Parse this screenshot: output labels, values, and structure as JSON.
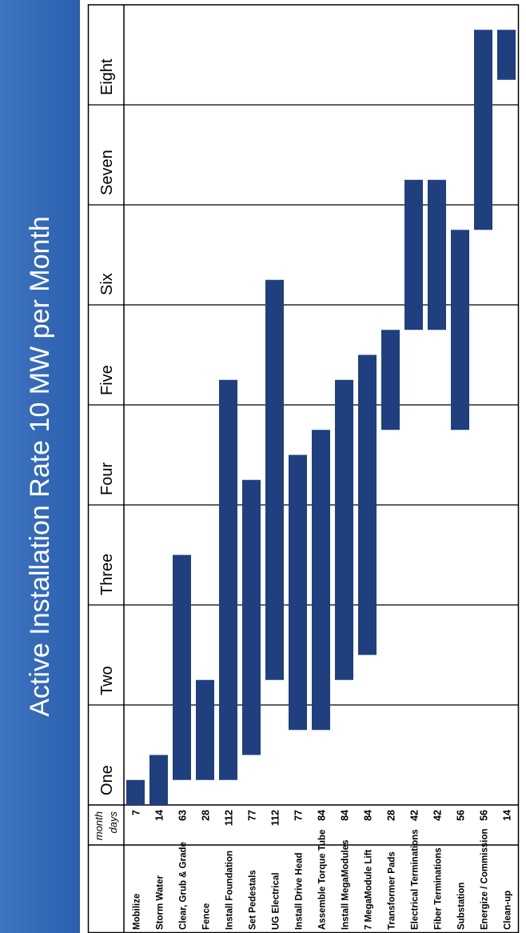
{
  "banner": {
    "title": "Active Installation Rate 10 MW per Month"
  },
  "chart_data": {
    "type": "gantt",
    "header": {
      "month_label": "month",
      "days_label": "days"
    },
    "months": [
      "One",
      "Two",
      "Three",
      "Four",
      "Five",
      "Six",
      "Seven",
      "Eight"
    ],
    "tasks": [
      {
        "name": "Mobilize",
        "days": "7",
        "start": 0,
        "end": 7
      },
      {
        "name": "Storm Water",
        "days": "14",
        "start": 0,
        "end": 14
      },
      {
        "name": "Clear, Grub & Grade",
        "days": "63",
        "start": 7,
        "end": 70
      },
      {
        "name": "Fence",
        "days": "28",
        "start": 7,
        "end": 35
      },
      {
        "name": "Install Foundation",
        "days": "112",
        "start": 7,
        "end": 119
      },
      {
        "name": "Set Pedestals",
        "days": "77",
        "start": 14,
        "end": 91
      },
      {
        "name": "UG Electrical",
        "days": "112",
        "start": 35,
        "end": 147
      },
      {
        "name": "Install Drive Head",
        "days": "77",
        "start": 21,
        "end": 98
      },
      {
        "name": "Assemble Torque Tube",
        "days": "84",
        "start": 21,
        "end": 105
      },
      {
        "name": "Install MegaModules",
        "days": "84",
        "start": 35,
        "end": 119
      },
      {
        "name": "7 MegaModule Lift",
        "days": "84",
        "start": 42,
        "end": 126
      },
      {
        "name": "Transformer Pads",
        "days": "28",
        "start": 105,
        "end": 133
      },
      {
        "name": "Electrical Terminations",
        "days": "42",
        "start": 133,
        "end": 175
      },
      {
        "name": "Fiber Terminations",
        "days": "42",
        "start": 133,
        "end": 175
      },
      {
        "name": "Substation",
        "days": "56",
        "start": 105,
        "end": 161
      },
      {
        "name": "Energize / Commission",
        "days": "56",
        "start": 161,
        "end": 217
      },
      {
        "name": "Clean-up",
        "days": "14",
        "start": 203,
        "end": 217
      }
    ],
    "colors": {
      "bar": "#1f3f7f",
      "banner": "#3467b5",
      "grid": "#000000"
    }
  }
}
